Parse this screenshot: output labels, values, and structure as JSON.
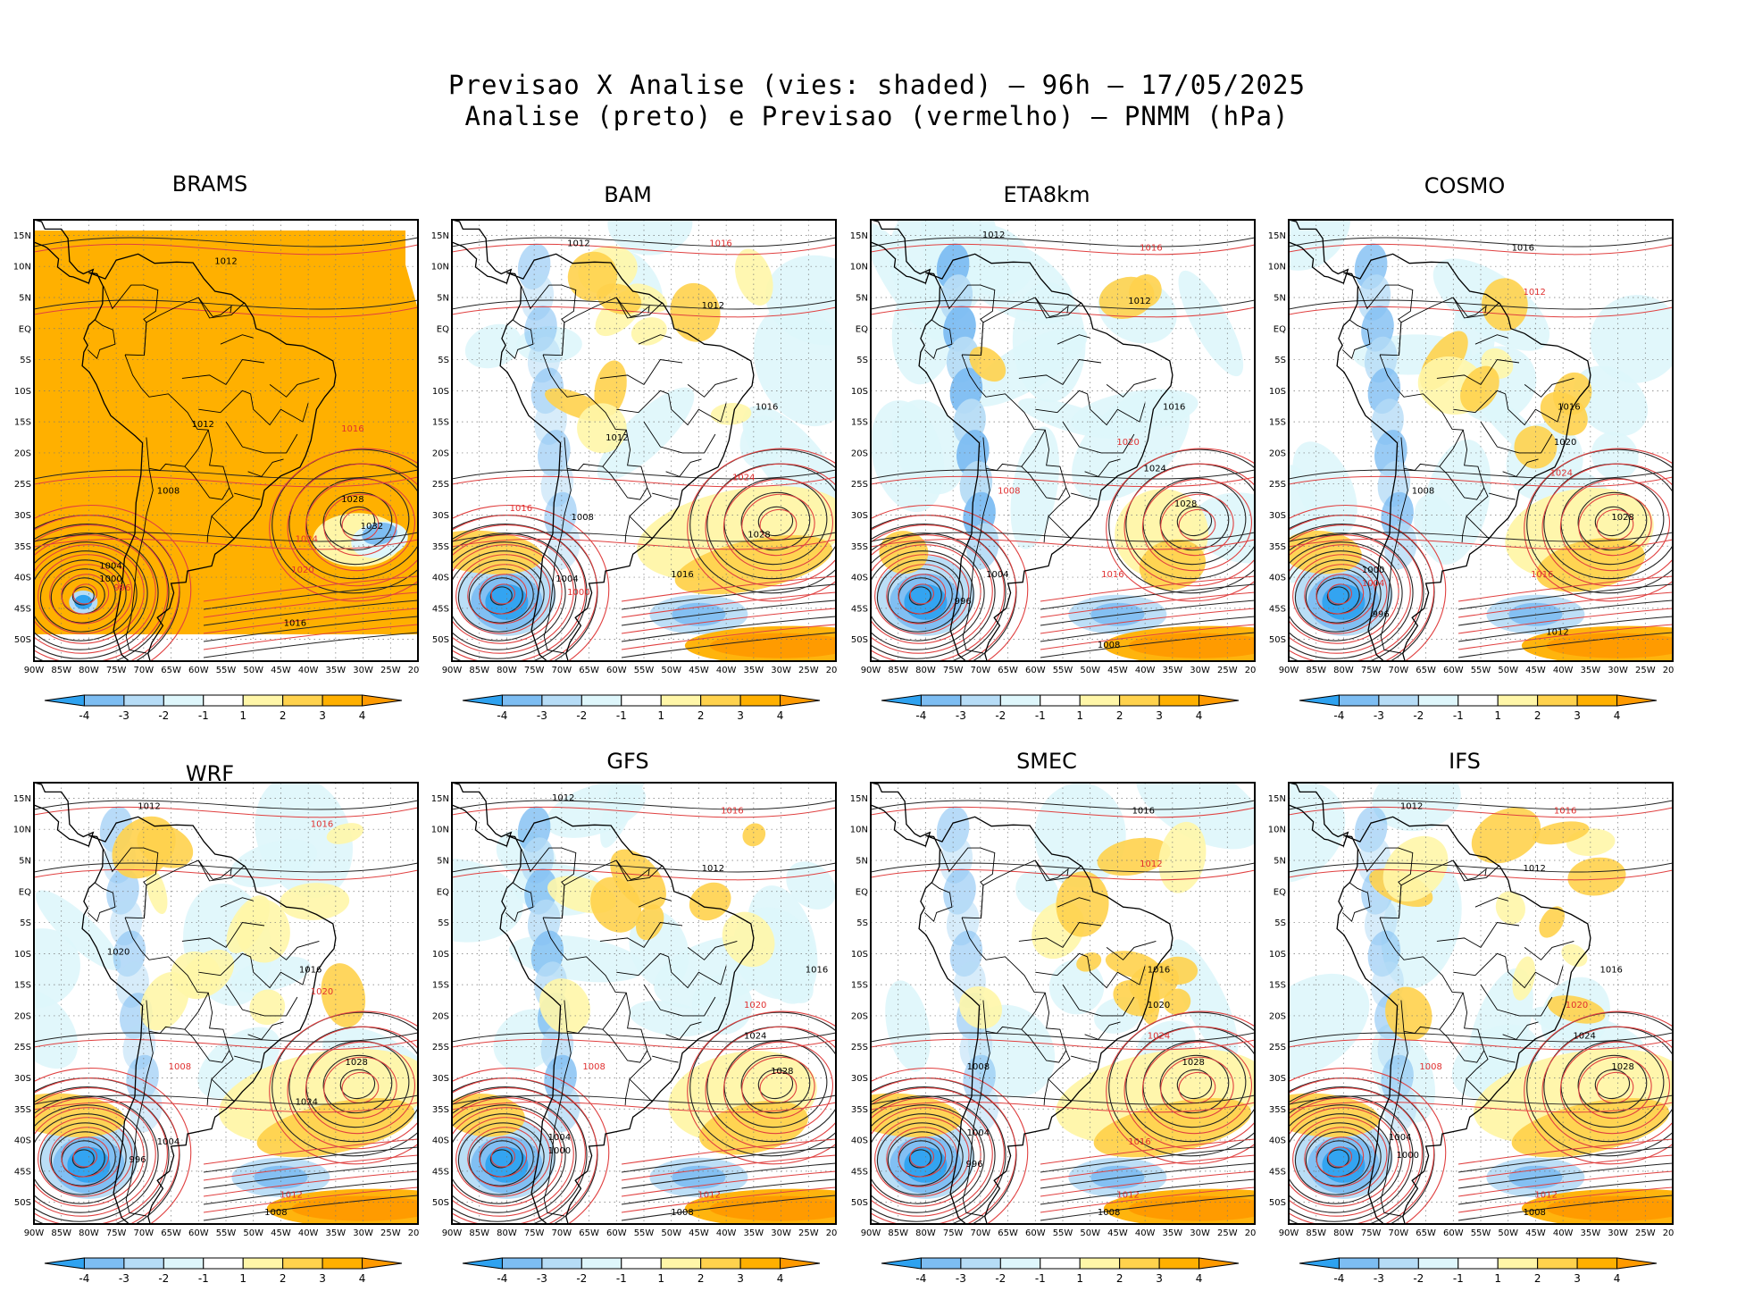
{
  "title": {
    "line1": "Previsao X Analise (vies: shaded) — 96h — 17/05/2025",
    "line2": "Analise (preto) e Previsao (vermelho) — PNMM (hPa)"
  },
  "lat_labels": [
    "15N",
    "10N",
    "5N",
    "EQ",
    "5S",
    "10S",
    "15S",
    "20S",
    "25S",
    "30S",
    "35S",
    "40S",
    "45S",
    "50S"
  ],
  "lon_labels": [
    "90W",
    "85W",
    "80W",
    "75W",
    "70W",
    "65W",
    "60W",
    "55W",
    "50W",
    "45W",
    "40W",
    "35W",
    "30W",
    "25W",
    "20W"
  ],
  "colorbar": {
    "labels": [
      "-4",
      "-3",
      "-2",
      "-1",
      "1",
      "2",
      "3",
      "4"
    ],
    "colors": [
      "#2ea2f0",
      "#7dbdf2",
      "#b6dcf6",
      "#def6fb",
      "#ffffff",
      "#fff6a8",
      "#ffd24d",
      "#ffb000",
      "#ff9a00"
    ]
  },
  "panels": [
    {
      "name": "BRAMS",
      "mode": "warm-full",
      "labels": [
        [
          "1012",
          0.5,
          0.1
        ],
        [
          "1016",
          0.83,
          0.48
        ],
        [
          "1012",
          0.44,
          0.47
        ],
        [
          "1008",
          0.35,
          0.62
        ],
        [
          "1024",
          0.71,
          0.73
        ],
        [
          "1028",
          0.83,
          0.64
        ],
        [
          "1032",
          0.88,
          0.7
        ],
        [
          "1020",
          0.7,
          0.8
        ],
        [
          "1004",
          0.2,
          0.79
        ],
        [
          "1000",
          0.2,
          0.82
        ],
        [
          "996",
          0.23,
          0.84
        ],
        [
          "1016",
          0.68,
          0.92
        ]
      ]
    },
    {
      "name": "BAM",
      "mode": "mixed",
      "labels": [
        [
          "1012",
          0.33,
          0.06
        ],
        [
          "1016",
          0.7,
          0.06
        ],
        [
          "1012",
          0.68,
          0.2
        ],
        [
          "1016",
          0.82,
          0.43
        ],
        [
          "1024",
          0.76,
          0.59
        ],
        [
          "1028",
          0.8,
          0.72
        ],
        [
          "1012",
          0.43,
          0.5
        ],
        [
          "1016",
          0.18,
          0.66
        ],
        [
          "1008",
          0.34,
          0.68
        ],
        [
          "1004",
          0.3,
          0.82
        ],
        [
          "1000",
          0.33,
          0.85
        ],
        [
          "1016",
          0.6,
          0.81
        ]
      ]
    },
    {
      "name": "ETA8km",
      "mode": "cool",
      "labels": [
        [
          "1012",
          0.32,
          0.04
        ],
        [
          "1016",
          0.73,
          0.07
        ],
        [
          "1012",
          0.7,
          0.19
        ],
        [
          "1016",
          0.79,
          0.43
        ],
        [
          "1020",
          0.67,
          0.51
        ],
        [
          "1024",
          0.74,
          0.57
        ],
        [
          "1028",
          0.82,
          0.65
        ],
        [
          "1008",
          0.36,
          0.62
        ],
        [
          "1004",
          0.33,
          0.81
        ],
        [
          "996",
          0.24,
          0.87
        ],
        [
          "1016",
          0.63,
          0.81
        ],
        [
          "1008",
          0.62,
          0.97
        ]
      ]
    },
    {
      "name": "COSMO",
      "mode": "mixed-cool",
      "labels": [
        [
          "1016",
          0.61,
          0.07
        ],
        [
          "1012",
          0.64,
          0.17
        ],
        [
          "1016",
          0.73,
          0.43
        ],
        [
          "1020",
          0.72,
          0.51
        ],
        [
          "1024",
          0.71,
          0.58
        ],
        [
          "1028",
          0.87,
          0.68
        ],
        [
          "1008",
          0.35,
          0.62
        ],
        [
          "1004",
          0.22,
          0.83
        ],
        [
          "1000",
          0.22,
          0.8
        ],
        [
          "996",
          0.24,
          0.9
        ],
        [
          "1016",
          0.66,
          0.81
        ],
        [
          "1012",
          0.7,
          0.94
        ]
      ]
    },
    {
      "name": "WRF",
      "mode": "mixed",
      "labels": [
        [
          "1012",
          0.3,
          0.06
        ],
        [
          "1016",
          0.75,
          0.1
        ],
        [
          "1020",
          0.22,
          0.39
        ],
        [
          "1016",
          0.72,
          0.43
        ],
        [
          "1020",
          0.75,
          0.48
        ],
        [
          "1028",
          0.84,
          0.64
        ],
        [
          "1024",
          0.71,
          0.73
        ],
        [
          "1008",
          0.38,
          0.65
        ],
        [
          "1004",
          0.35,
          0.82
        ],
        [
          "996",
          0.27,
          0.86
        ],
        [
          "1012",
          0.67,
          0.94
        ],
        [
          "1008",
          0.63,
          0.98
        ]
      ]
    },
    {
      "name": "GFS",
      "mode": "mixed-cool",
      "labels": [
        [
          "1012",
          0.29,
          0.04
        ],
        [
          "1016",
          0.73,
          0.07
        ],
        [
          "1012",
          0.68,
          0.2
        ],
        [
          "1016",
          0.95,
          0.43
        ],
        [
          "1020",
          0.79,
          0.51
        ],
        [
          "1024",
          0.79,
          0.58
        ],
        [
          "1028",
          0.86,
          0.66
        ],
        [
          "1008",
          0.37,
          0.65
        ],
        [
          "1004",
          0.28,
          0.81
        ],
        [
          "1000",
          0.28,
          0.84
        ],
        [
          "1012",
          0.67,
          0.94
        ],
        [
          "1008",
          0.6,
          0.98
        ]
      ]
    },
    {
      "name": "SMEC",
      "mode": "mixed",
      "labels": [
        [
          "1016",
          0.71,
          0.07
        ],
        [
          "1012",
          0.73,
          0.19
        ],
        [
          "1016",
          0.75,
          0.43
        ],
        [
          "1020",
          0.75,
          0.51
        ],
        [
          "1024",
          0.75,
          0.58
        ],
        [
          "1028",
          0.84,
          0.64
        ],
        [
          "1008",
          0.28,
          0.65
        ],
        [
          "1016",
          0.7,
          0.82
        ],
        [
          "1004",
          0.28,
          0.8
        ],
        [
          "996",
          0.27,
          0.87
        ],
        [
          "1012",
          0.67,
          0.94
        ],
        [
          "1008",
          0.62,
          0.98
        ]
      ]
    },
    {
      "name": "IFS",
      "mode": "mixed",
      "labels": [
        [
          "1012",
          0.32,
          0.06
        ],
        [
          "1016",
          0.72,
          0.07
        ],
        [
          "1012",
          0.64,
          0.2
        ],
        [
          "1016",
          0.84,
          0.43
        ],
        [
          "1020",
          0.75,
          0.51
        ],
        [
          "1024",
          0.77,
          0.58
        ],
        [
          "1028",
          0.87,
          0.65
        ],
        [
          "1008",
          0.37,
          0.65
        ],
        [
          "1004",
          0.29,
          0.81
        ],
        [
          "1000",
          0.31,
          0.85
        ],
        [
          "1012",
          0.67,
          0.94
        ],
        [
          "1008",
          0.64,
          0.98
        ]
      ]
    }
  ]
}
